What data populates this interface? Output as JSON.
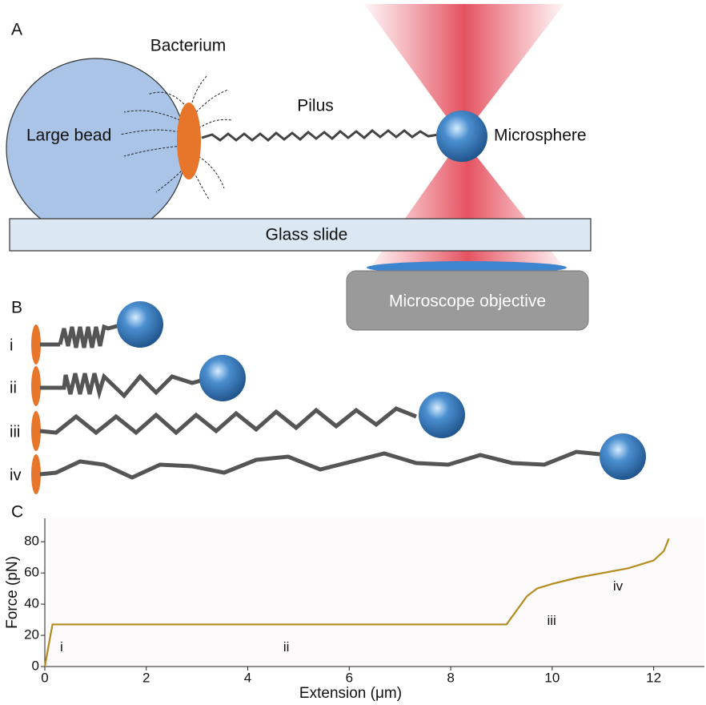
{
  "panel_a": {
    "label": "A",
    "bacterium": "Bacterium",
    "pilus": "Pilus",
    "large_bead": "Large bead",
    "microsphere": "Microsphere",
    "glass_slide": "Glass slide",
    "objective": "Microscope objective"
  },
  "panel_b": {
    "label": "B",
    "rows": [
      "i",
      "ii",
      "iii",
      "iv"
    ]
  },
  "panel_c": {
    "label": "C"
  },
  "chart_data": {
    "type": "line",
    "x_label": "Extension (μm)",
    "y_label": "Force (pN)",
    "x": [
      0,
      0.15,
      0.3,
      1,
      2,
      3,
      4,
      5,
      6,
      7,
      8,
      9,
      9.1,
      9.3,
      9.5,
      9.7,
      10,
      10.5,
      11,
      11.5,
      12,
      12.2,
      12.3
    ],
    "series": [
      {
        "color": "#b48c1e",
        "values": [
          0,
          27,
          27,
          27,
          27,
          27,
          27,
          27,
          27,
          27,
          27,
          27,
          27,
          36,
          45,
          50,
          53,
          57,
          60,
          63,
          68,
          74,
          82
        ]
      }
    ],
    "xlim": [
      0,
      13
    ],
    "ylim": [
      0,
      95
    ],
    "xticks": [
      0,
      2,
      4,
      6,
      8,
      10,
      12
    ],
    "yticks": [
      0,
      20,
      40,
      60,
      80
    ],
    "annotations": [
      {
        "text": "i",
        "x": 0.3,
        "y": 12
      },
      {
        "text": "ii",
        "x": 4.7,
        "y": 12
      },
      {
        "text": "iii",
        "x": 9.9,
        "y": 29
      },
      {
        "text": "iv",
        "x": 11.2,
        "y": 51
      }
    ]
  }
}
